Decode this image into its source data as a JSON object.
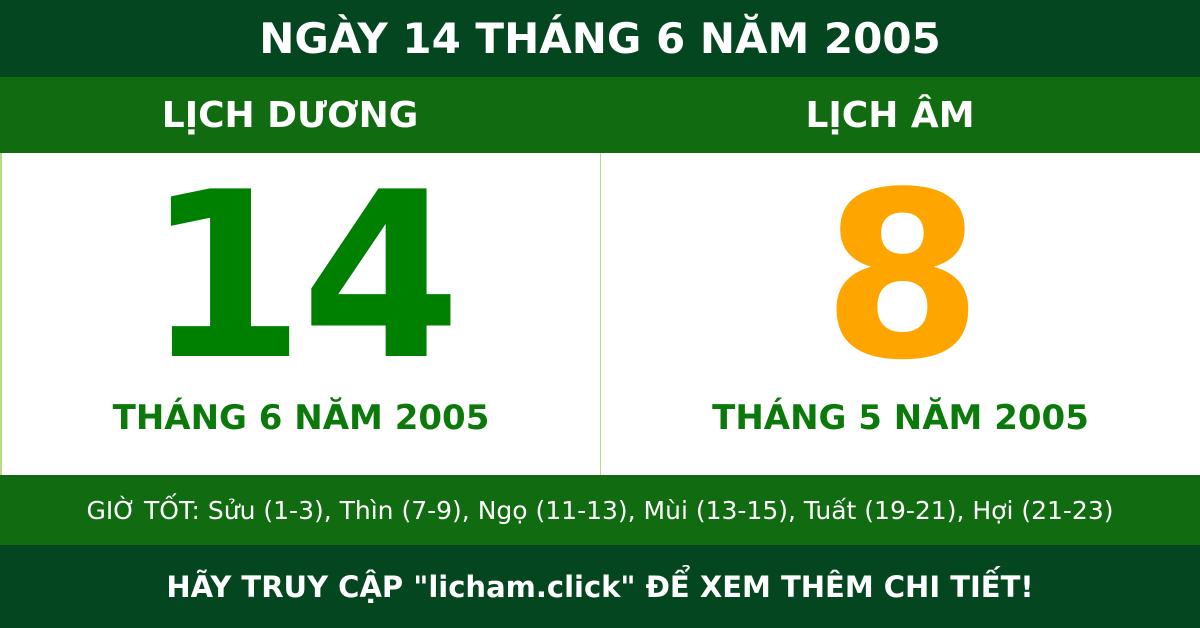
{
  "title": "NGÀY 14 THÁNG 6 NĂM 2005",
  "solar": {
    "heading": "LỊCH DƯƠNG",
    "day": "14",
    "month_year": "THÁNG 6 NĂM 2005"
  },
  "lunar": {
    "heading": "LỊCH ÂM",
    "day": "8",
    "month_year": "THÁNG 5 NĂM 2005"
  },
  "good_hours": "GIỜ TỐT: Sửu (1-3), Thìn (7-9), Ngọ (11-13), Mùi (13-15), Tuất (19-21), Hợi (21-23)",
  "footer": "HÃY TRUY CẬP \"licham.click\" ĐỂ XEM THÊM CHI TIẾT!",
  "colors": {
    "dark_green": "#04461f",
    "green_band": "#116b10",
    "solar_day": "#008000",
    "lunar_day": "#ffa500"
  }
}
